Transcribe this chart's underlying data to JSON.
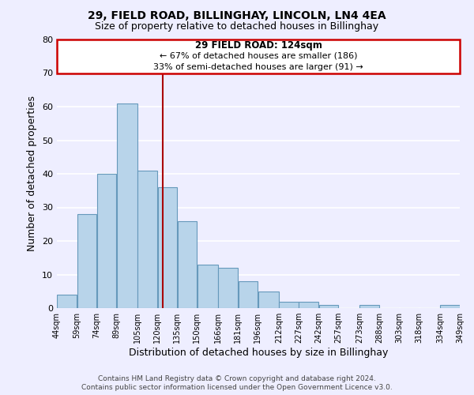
{
  "title": "29, FIELD ROAD, BILLINGHAY, LINCOLN, LN4 4EA",
  "subtitle": "Size of property relative to detached houses in Billinghay",
  "xlabel": "Distribution of detached houses by size in Billinghay",
  "ylabel": "Number of detached properties",
  "bar_left_edges": [
    44,
    59,
    74,
    89,
    105,
    120,
    135,
    150,
    166,
    181,
    196,
    212,
    227,
    242,
    257,
    273,
    288,
    303,
    318,
    334
  ],
  "bar_widths": [
    15,
    15,
    15,
    16,
    15,
    15,
    15,
    16,
    15,
    15,
    16,
    15,
    15,
    15,
    16,
    15,
    15,
    15,
    16,
    15
  ],
  "bar_heights": [
    4,
    28,
    40,
    61,
    41,
    36,
    26,
    13,
    12,
    8,
    5,
    2,
    2,
    1,
    0,
    1,
    0,
    0,
    0,
    1
  ],
  "tick_labels": [
    "44sqm",
    "59sqm",
    "74sqm",
    "89sqm",
    "105sqm",
    "120sqm",
    "135sqm",
    "150sqm",
    "166sqm",
    "181sqm",
    "196sqm",
    "212sqm",
    "227sqm",
    "242sqm",
    "257sqm",
    "273sqm",
    "288sqm",
    "303sqm",
    "318sqm",
    "334sqm",
    "349sqm"
  ],
  "bar_color": "#b8d4ea",
  "bar_edge_color": "#6699bb",
  "vline_x": 124,
  "vline_color": "#aa0000",
  "ylim": [
    0,
    80
  ],
  "yticks": [
    0,
    10,
    20,
    30,
    40,
    50,
    60,
    70,
    80
  ],
  "annotation_title": "29 FIELD ROAD: 124sqm",
  "annotation_line1": "← 67% of detached houses are smaller (186)",
  "annotation_line2": "33% of semi-detached houses are larger (91) →",
  "annotation_box_color": "#ffffff",
  "annotation_box_edge": "#cc0000",
  "footer1": "Contains HM Land Registry data © Crown copyright and database right 2024.",
  "footer2": "Contains public sector information licensed under the Open Government Licence v3.0.",
  "background_color": "#eeeeff",
  "grid_color": "#ffffff"
}
